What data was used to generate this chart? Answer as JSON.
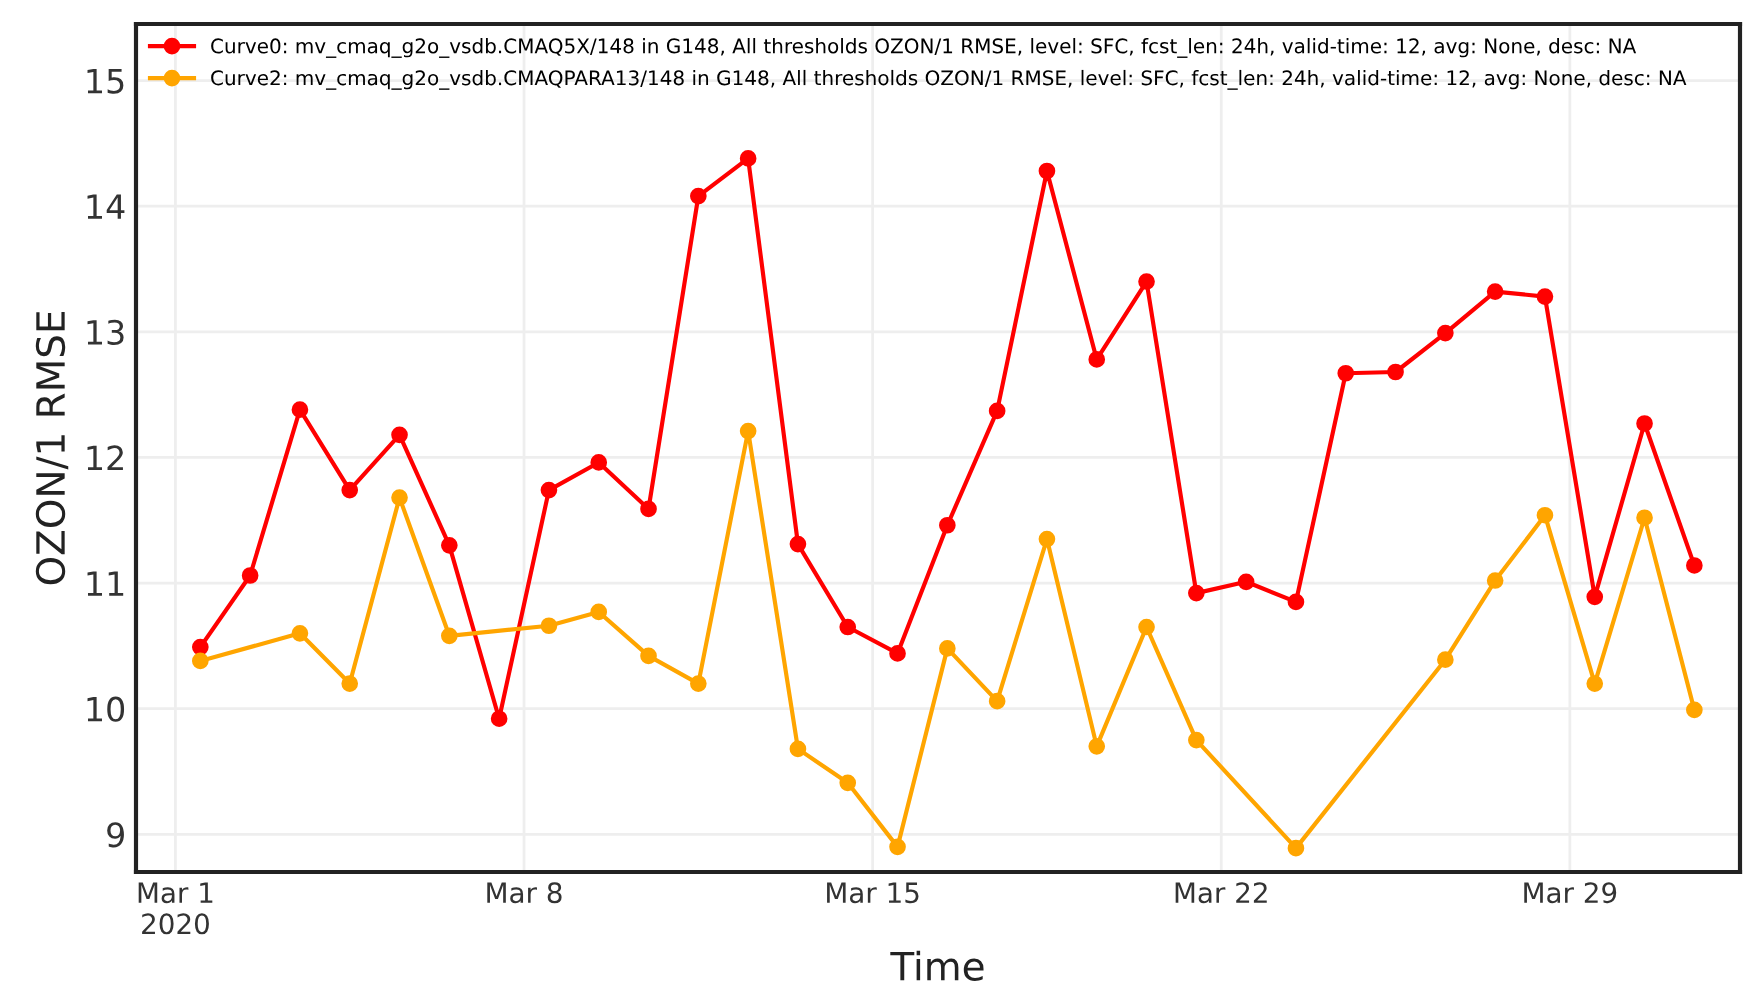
{
  "chart_data": {
    "type": "line",
    "xlabel": "Time",
    "ylabel": "OZON/1 RMSE",
    "xlim": [
      "2020-02-29T05:00",
      "2020-04-01T10:00"
    ],
    "xticks": [
      {
        "value": "2020-03-01",
        "label": "Mar 1\n2020"
      },
      {
        "value": "2020-03-08",
        "label": "Mar 8"
      },
      {
        "value": "2020-03-15",
        "label": "Mar 15"
      },
      {
        "value": "2020-03-22",
        "label": "Mar 22"
      },
      {
        "value": "2020-03-29",
        "label": "Mar 29"
      }
    ],
    "ylim": [
      8.7,
      15.45
    ],
    "yticks": [
      9,
      10,
      11,
      12,
      13,
      14,
      15
    ],
    "grid": true,
    "legend": "top left",
    "marker": "circle",
    "line_style": "solid",
    "series": [
      {
        "name": "Curve0: mv_cmaq_g2o_vsdb.CMAQ5X/148 in G148, All thresholds OZON/1 RMSE, level: SFC, fcst_len: 24h, valid-time: 12, avg: None, desc: NA",
        "color": "#ff0000",
        "x": [
          "2020-03-01T12:00",
          "2020-03-02T12:00",
          "2020-03-03T12:00",
          "2020-03-04T12:00",
          "2020-03-05T12:00",
          "2020-03-06T12:00",
          "2020-03-07T12:00",
          "2020-03-08T12:00",
          "2020-03-09T12:00",
          "2020-03-10T12:00",
          "2020-03-11T12:00",
          "2020-03-12T12:00",
          "2020-03-13T12:00",
          "2020-03-14T12:00",
          "2020-03-15T12:00",
          "2020-03-16T12:00",
          "2020-03-17T12:00",
          "2020-03-18T12:00",
          "2020-03-19T12:00",
          "2020-03-20T12:00",
          "2020-03-21T12:00",
          "2020-03-22T12:00",
          "2020-03-23T12:00",
          "2020-03-24T12:00",
          "2020-03-25T12:00",
          "2020-03-26T12:00",
          "2020-03-27T12:00",
          "2020-03-28T12:00",
          "2020-03-29T12:00",
          "2020-03-30T12:00",
          "2020-03-31T12:00"
        ],
        "values": [
          10.49,
          11.06,
          12.38,
          11.74,
          12.18,
          11.3,
          9.92,
          11.74,
          11.96,
          11.59,
          14.08,
          14.38,
          11.31,
          10.65,
          10.44,
          11.46,
          12.37,
          14.28,
          12.78,
          13.4,
          10.92,
          11.01,
          10.85,
          12.67,
          12.68,
          12.99,
          13.32,
          13.28,
          10.89,
          12.27,
          11.14
        ]
      },
      {
        "name": "Curve2: mv_cmaq_g2o_vsdb.CMAQPARA13/148 in G148, All thresholds OZON/1 RMSE, level: SFC, fcst_len: 24h, valid-time: 12, avg: None, desc: NA",
        "color": "#ffa500",
        "x": [
          "2020-03-01T12:00",
          "2020-03-03T12:00",
          "2020-03-04T12:00",
          "2020-03-05T12:00",
          "2020-03-06T12:00",
          "2020-03-08T12:00",
          "2020-03-09T12:00",
          "2020-03-10T12:00",
          "2020-03-11T12:00",
          "2020-03-12T12:00",
          "2020-03-13T12:00",
          "2020-03-14T12:00",
          "2020-03-15T12:00",
          "2020-03-16T12:00",
          "2020-03-17T12:00",
          "2020-03-18T12:00",
          "2020-03-19T12:00",
          "2020-03-20T12:00",
          "2020-03-21T12:00",
          "2020-03-23T12:00",
          "2020-03-26T12:00",
          "2020-03-27T12:00",
          "2020-03-28T12:00",
          "2020-03-29T12:00",
          "2020-03-30T12:00",
          "2020-03-31T12:00"
        ],
        "values": [
          10.38,
          10.6,
          10.2,
          11.68,
          10.58,
          10.66,
          10.77,
          10.42,
          10.2,
          12.21,
          9.68,
          9.41,
          8.9,
          10.48,
          10.06,
          11.35,
          9.7,
          10.65,
          9.75,
          8.89,
          10.39,
          11.02,
          11.54,
          10.2,
          11.52,
          9.99
        ]
      }
    ]
  }
}
